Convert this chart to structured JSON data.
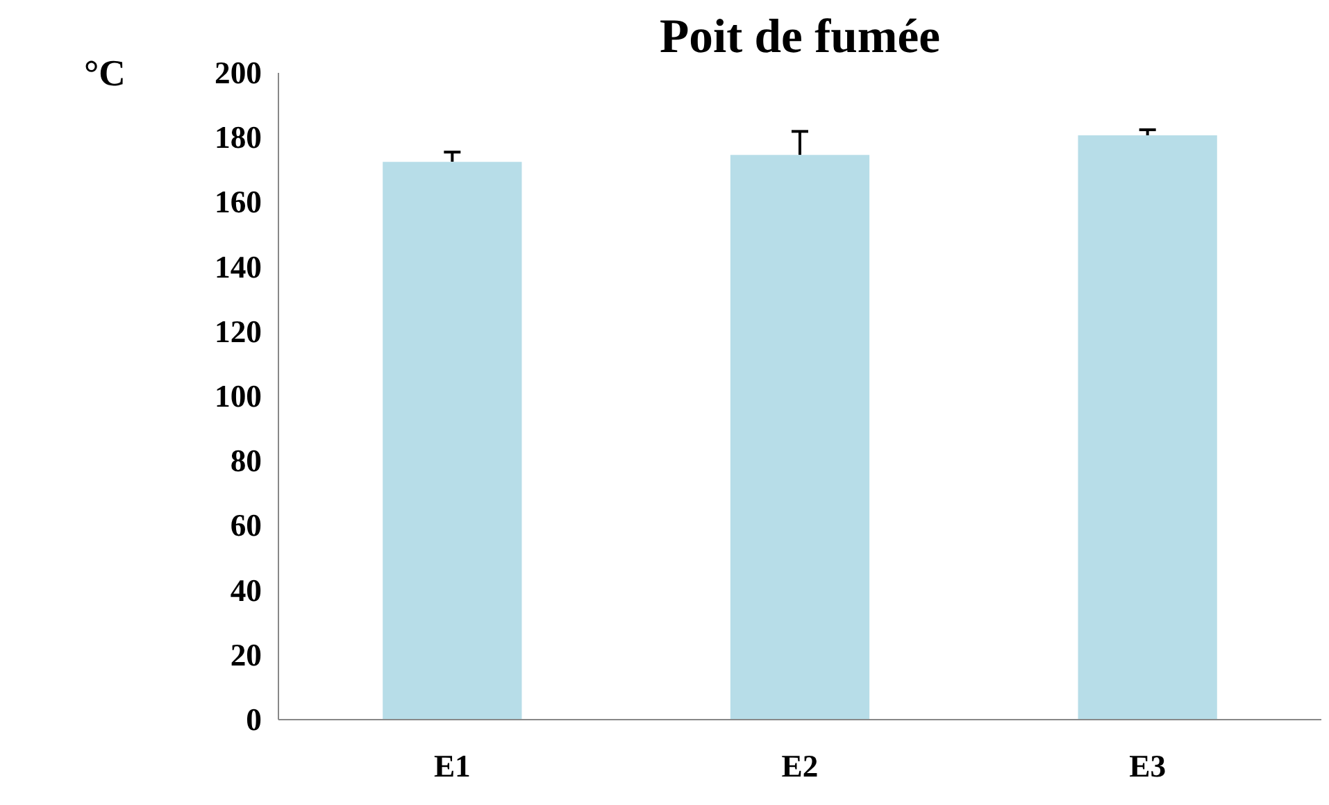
{
  "chart_data": {
    "type": "bar",
    "title": "Poit de fumée",
    "ylabel": "°C",
    "categories": [
      "E1",
      "E2",
      "E3"
    ],
    "values": [
      172.5,
      174.6,
      180.7
    ],
    "errors": [
      [
        172.5,
        175.5
      ],
      [
        174.6,
        181.9
      ],
      [
        180.7,
        182.4
      ]
    ],
    "color": "#b7dde8",
    "ylim": [
      0,
      200
    ],
    "yticks": [
      0,
      20,
      40,
      60,
      80,
      100,
      120,
      140,
      160,
      180,
      200
    ],
    "grid": false
  }
}
